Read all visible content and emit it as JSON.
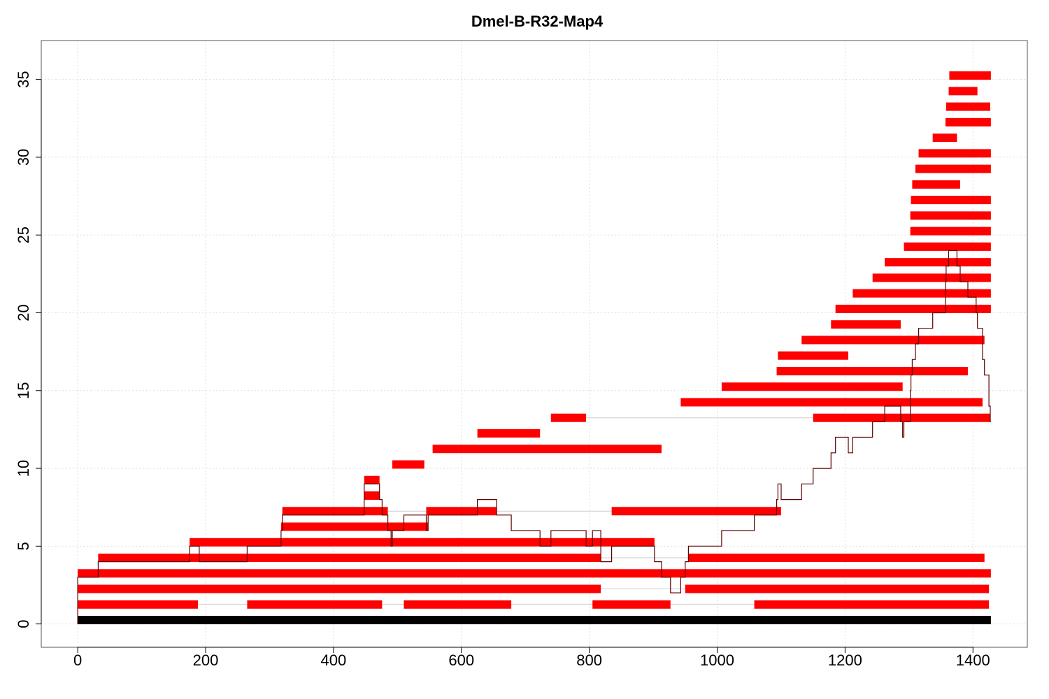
{
  "chart_data": {
    "type": "segment-map",
    "title": "Dmel-B-R32-Map4",
    "xlabel": "",
    "ylabel": "",
    "xlim": [
      -57,
      1485
    ],
    "ylim": [
      -1.5,
      37.5
    ],
    "x_ticks": [
      0,
      200,
      400,
      600,
      800,
      1000,
      1200,
      1400
    ],
    "y_ticks": [
      0,
      5,
      10,
      15,
      20,
      25,
      30,
      35
    ],
    "grid": true,
    "colors": {
      "segment": "#ff0000",
      "base": "#000000",
      "coverage": "#5c0000",
      "connector": "#cccccc",
      "grid": "#dddddd"
    },
    "base_bar": {
      "x": [
        0,
        1428
      ],
      "y": 0.25
    },
    "segments": [
      {
        "y": 1.25,
        "x": [
          0,
          188
        ]
      },
      {
        "y": 1.25,
        "x": [
          265,
          476
        ]
      },
      {
        "y": 1.25,
        "x": [
          510,
          678
        ]
      },
      {
        "y": 1.25,
        "x": [
          805,
          927
        ]
      },
      {
        "y": 1.25,
        "x": [
          1058,
          1425
        ]
      },
      {
        "y": 2.25,
        "x": [
          0,
          818
        ]
      },
      {
        "y": 2.25,
        "x": [
          950,
          1425
        ]
      },
      {
        "y": 3.25,
        "x": [
          0,
          1428
        ]
      },
      {
        "y": 4.25,
        "x": [
          32,
          818
        ]
      },
      {
        "y": 4.25,
        "x": [
          955,
          1418
        ]
      },
      {
        "y": 5.25,
        "x": [
          175,
          902
        ]
      },
      {
        "y": 6.25,
        "x": [
          318,
          548
        ]
      },
      {
        "y": 7.25,
        "x": [
          320,
          485
        ]
      },
      {
        "y": 7.25,
        "x": [
          545,
          655
        ]
      },
      {
        "y": 7.25,
        "x": [
          835,
          1100
        ]
      },
      {
        "y": 8.25,
        "x": [
          448,
          472
        ]
      },
      {
        "y": 9.25,
        "x": [
          448,
          472
        ]
      },
      {
        "y": 10.25,
        "x": [
          492,
          542
        ]
      },
      {
        "y": 11.25,
        "x": [
          555,
          913
        ]
      },
      {
        "y": 12.25,
        "x": [
          625,
          723
        ]
      },
      {
        "y": 13.25,
        "x": [
          740,
          795
        ]
      },
      {
        "y": 13.25,
        "x": [
          1150,
          1427
        ]
      },
      {
        "y": 14.25,
        "x": [
          943,
          1415
        ]
      },
      {
        "y": 15.25,
        "x": [
          1007,
          1290
        ]
      },
      {
        "y": 16.25,
        "x": [
          1093,
          1392
        ]
      },
      {
        "y": 17.25,
        "x": [
          1095,
          1205
        ]
      },
      {
        "y": 18.25,
        "x": [
          1132,
          1418
        ]
      },
      {
        "y": 19.25,
        "x": [
          1178,
          1287
        ]
      },
      {
        "y": 20.25,
        "x": [
          1185,
          1428
        ]
      },
      {
        "y": 21.25,
        "x": [
          1212,
          1428
        ]
      },
      {
        "y": 22.25,
        "x": [
          1243,
          1428
        ]
      },
      {
        "y": 23.25,
        "x": [
          1262,
          1428
        ]
      },
      {
        "y": 24.25,
        "x": [
          1292,
          1428
        ]
      },
      {
        "y": 25.25,
        "x": [
          1302,
          1428
        ]
      },
      {
        "y": 26.25,
        "x": [
          1302,
          1428
        ]
      },
      {
        "y": 27.25,
        "x": [
          1303,
          1428
        ]
      },
      {
        "y": 28.25,
        "x": [
          1305,
          1380
        ]
      },
      {
        "y": 29.25,
        "x": [
          1310,
          1428
        ]
      },
      {
        "y": 30.25,
        "x": [
          1315,
          1428
        ]
      },
      {
        "y": 31.25,
        "x": [
          1337,
          1375
        ]
      },
      {
        "y": 32.25,
        "x": [
          1357,
          1428
        ]
      },
      {
        "y": 33.25,
        "x": [
          1358,
          1427
        ]
      },
      {
        "y": 34.25,
        "x": [
          1362,
          1407
        ]
      },
      {
        "y": 35.25,
        "x": [
          1363,
          1428
        ]
      }
    ],
    "connectors": [
      {
        "y": 1.25,
        "x": [
          188,
          1058
        ]
      },
      {
        "y": 2.25,
        "x": [
          818,
          950
        ]
      },
      {
        "y": 4.25,
        "x": [
          818,
          955
        ]
      },
      {
        "y": 7.25,
        "x": [
          485,
          1100
        ]
      },
      {
        "y": 13.25,
        "x": [
          795,
          1150
        ]
      }
    ],
    "coverage": [
      [
        0,
        0
      ],
      [
        0,
        3
      ],
      [
        32,
        3
      ],
      [
        32,
        4
      ],
      [
        175,
        4
      ],
      [
        175,
        5
      ],
      [
        190,
        5
      ],
      [
        190,
        4
      ],
      [
        265,
        4
      ],
      [
        265,
        5
      ],
      [
        318,
        5
      ],
      [
        318,
        6
      ],
      [
        320,
        6
      ],
      [
        320,
        7
      ],
      [
        448,
        7
      ],
      [
        448,
        9
      ],
      [
        472,
        9
      ],
      [
        472,
        8
      ],
      [
        476,
        8
      ],
      [
        476,
        7
      ],
      [
        485,
        7
      ],
      [
        485,
        6
      ],
      [
        490,
        6
      ],
      [
        490,
        5
      ],
      [
        492,
        5
      ],
      [
        492,
        6
      ],
      [
        510,
        6
      ],
      [
        510,
        7
      ],
      [
        545,
        7
      ],
      [
        545,
        6
      ],
      [
        548,
        6
      ],
      [
        548,
        7
      ],
      [
        625,
        7
      ],
      [
        625,
        8
      ],
      [
        655,
        8
      ],
      [
        655,
        7
      ],
      [
        678,
        7
      ],
      [
        678,
        6
      ],
      [
        723,
        6
      ],
      [
        723,
        5
      ],
      [
        740,
        5
      ],
      [
        740,
        6
      ],
      [
        795,
        6
      ],
      [
        795,
        5
      ],
      [
        805,
        5
      ],
      [
        805,
        6
      ],
      [
        818,
        6
      ],
      [
        818,
        4
      ],
      [
        835,
        4
      ],
      [
        835,
        5
      ],
      [
        902,
        5
      ],
      [
        902,
        4
      ],
      [
        913,
        4
      ],
      [
        913,
        3
      ],
      [
        927,
        3
      ],
      [
        927,
        2
      ],
      [
        943,
        2
      ],
      [
        943,
        3
      ],
      [
        950,
        3
      ],
      [
        950,
        4
      ],
      [
        955,
        4
      ],
      [
        955,
        5
      ],
      [
        1007,
        5
      ],
      [
        1007,
        6
      ],
      [
        1058,
        6
      ],
      [
        1058,
        7
      ],
      [
        1093,
        7
      ],
      [
        1093,
        8
      ],
      [
        1095,
        8
      ],
      [
        1095,
        9
      ],
      [
        1100,
        9
      ],
      [
        1100,
        8
      ],
      [
        1132,
        8
      ],
      [
        1132,
        9
      ],
      [
        1150,
        9
      ],
      [
        1150,
        10
      ],
      [
        1178,
        10
      ],
      [
        1178,
        11
      ],
      [
        1185,
        11
      ],
      [
        1185,
        12
      ],
      [
        1205,
        12
      ],
      [
        1205,
        11
      ],
      [
        1212,
        11
      ],
      [
        1212,
        12
      ],
      [
        1243,
        12
      ],
      [
        1243,
        13
      ],
      [
        1262,
        13
      ],
      [
        1262,
        14
      ],
      [
        1287,
        14
      ],
      [
        1287,
        13
      ],
      [
        1290,
        13
      ],
      [
        1290,
        12
      ],
      [
        1292,
        12
      ],
      [
        1292,
        13
      ],
      [
        1302,
        13
      ],
      [
        1302,
        15
      ],
      [
        1303,
        15
      ],
      [
        1303,
        16
      ],
      [
        1305,
        16
      ],
      [
        1305,
        17
      ],
      [
        1310,
        17
      ],
      [
        1310,
        18
      ],
      [
        1315,
        18
      ],
      [
        1315,
        19
      ],
      [
        1337,
        19
      ],
      [
        1337,
        20
      ],
      [
        1357,
        20
      ],
      [
        1357,
        22
      ],
      [
        1358,
        22
      ],
      [
        1358,
        23
      ],
      [
        1362,
        23
      ],
      [
        1362,
        24
      ],
      [
        1375,
        24
      ],
      [
        1375,
        23
      ],
      [
        1380,
        23
      ],
      [
        1380,
        22
      ],
      [
        1392,
        22
      ],
      [
        1392,
        21
      ],
      [
        1405,
        21
      ],
      [
        1405,
        20
      ],
      [
        1407,
        20
      ],
      [
        1407,
        19
      ],
      [
        1415,
        19
      ],
      [
        1415,
        17
      ],
      [
        1418,
        17
      ],
      [
        1418,
        16
      ],
      [
        1425,
        16
      ],
      [
        1425,
        14
      ],
      [
        1427,
        14
      ],
      [
        1427,
        13
      ],
      [
        1428,
        13
      ]
    ]
  }
}
